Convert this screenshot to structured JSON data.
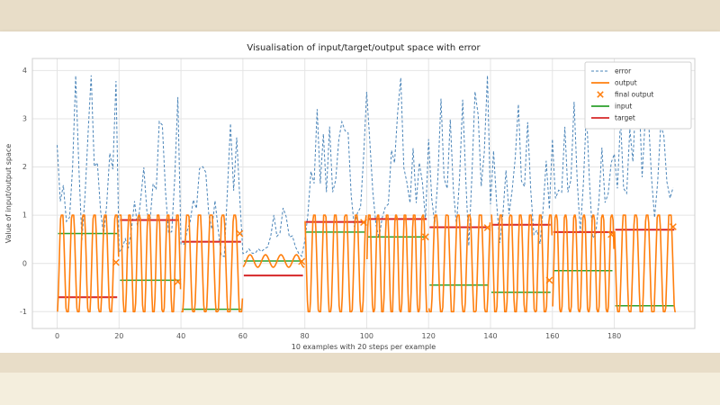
{
  "window": {
    "panel_color": "#ffffff",
    "letterbox_color": "#e8ddc8",
    "lower_strip_color": "#f4eedd"
  },
  "chart_data": {
    "type": "line",
    "title": "Visualisation of input/target/output space with error",
    "xlabel": "10 examples with 20 steps per example",
    "ylabel": "Value of input/output space",
    "xticks": [
      0,
      20,
      40,
      60,
      80,
      100,
      120,
      140,
      160,
      180
    ],
    "yticks": [
      -1,
      0,
      1,
      2,
      3,
      4
    ],
    "xlim": [
      -8,
      206
    ],
    "ylim": [
      -1.35,
      4.25
    ],
    "grid": true,
    "steps_per_example": 20,
    "num_examples": 10,
    "colors": {
      "error": "#4a84b8",
      "output": "#ff7f0e",
      "final_output": "#ff7f0e",
      "input": "#2ca02c",
      "target": "#d62728",
      "grid": "#e4e4e4",
      "frame": "#cfcfcf"
    },
    "legend": {
      "position": "upper right",
      "entries": [
        {
          "label": "error",
          "color": "#4a84b8",
          "style": "dashed"
        },
        {
          "label": "output",
          "color": "#ff7f0e",
          "style": "solid"
        },
        {
          "label": "final output",
          "color": "#ff7f0e",
          "style": "x-marker"
        },
        {
          "label": "input",
          "color": "#2ca02c",
          "style": "solid"
        },
        {
          "label": "target",
          "color": "#d62728",
          "style": "solid"
        }
      ]
    },
    "examples": [
      {
        "start": 0,
        "input": 0.62,
        "target": -0.7,
        "final_output": 0.02,
        "output_amplitude": 1.0,
        "output_period": 3.5,
        "output_offset": 0.0,
        "error_peak": 3.9,
        "seed": 3
      },
      {
        "start": 20,
        "input": -0.35,
        "target": 0.9,
        "final_output": -0.38,
        "output_amplitude": 1.0,
        "output_period": 3.1,
        "output_offset": 0.0,
        "error_peak": 3.45,
        "seed": 8
      },
      {
        "start": 40,
        "input": -0.95,
        "target": 0.45,
        "final_output": 0.62,
        "output_amplitude": 1.0,
        "output_period": 3.8,
        "output_offset": 0.0,
        "error_peak": 2.9,
        "seed": 21
      },
      {
        "start": 60,
        "input": 0.05,
        "target": -0.25,
        "final_output": 0.04,
        "output_amplitude": 0.1,
        "output_period": 5.0,
        "output_offset": 0.05,
        "error_peak": 1.15,
        "seed": 14
      },
      {
        "start": 80,
        "input": 0.65,
        "target": 0.86,
        "final_output": 0.85,
        "output_amplitude": 1.0,
        "output_period": 3.4,
        "output_offset": 0.0,
        "error_peak": 3.2,
        "seed": 5
      },
      {
        "start": 100,
        "input": 0.55,
        "target": 0.92,
        "final_output": 0.55,
        "output_amplitude": 1.0,
        "output_period": 2.9,
        "output_offset": 0.0,
        "error_peak": 3.85,
        "seed": 11
      },
      {
        "start": 120,
        "input": -0.45,
        "target": 0.75,
        "final_output": 0.74,
        "output_amplitude": 1.0,
        "output_period": 3.6,
        "output_offset": 0.0,
        "error_peak": 3.9,
        "seed": 17
      },
      {
        "start": 140,
        "input": -0.6,
        "target": 0.8,
        "final_output": -0.35,
        "output_amplitude": 1.0,
        "output_period": 3.2,
        "output_offset": 0.0,
        "error_peak": 3.3,
        "seed": 23
      },
      {
        "start": 160,
        "input": -0.15,
        "target": 0.65,
        "final_output": 0.6,
        "output_amplitude": 1.0,
        "output_period": 3.0,
        "output_offset": 0.0,
        "error_peak": 3.35,
        "seed": 29
      },
      {
        "start": 180,
        "input": -0.88,
        "target": 0.7,
        "final_output": 0.76,
        "output_amplitude": 1.0,
        "output_period": 3.7,
        "output_offset": 0.0,
        "error_peak": 3.5,
        "seed": 31
      }
    ]
  }
}
